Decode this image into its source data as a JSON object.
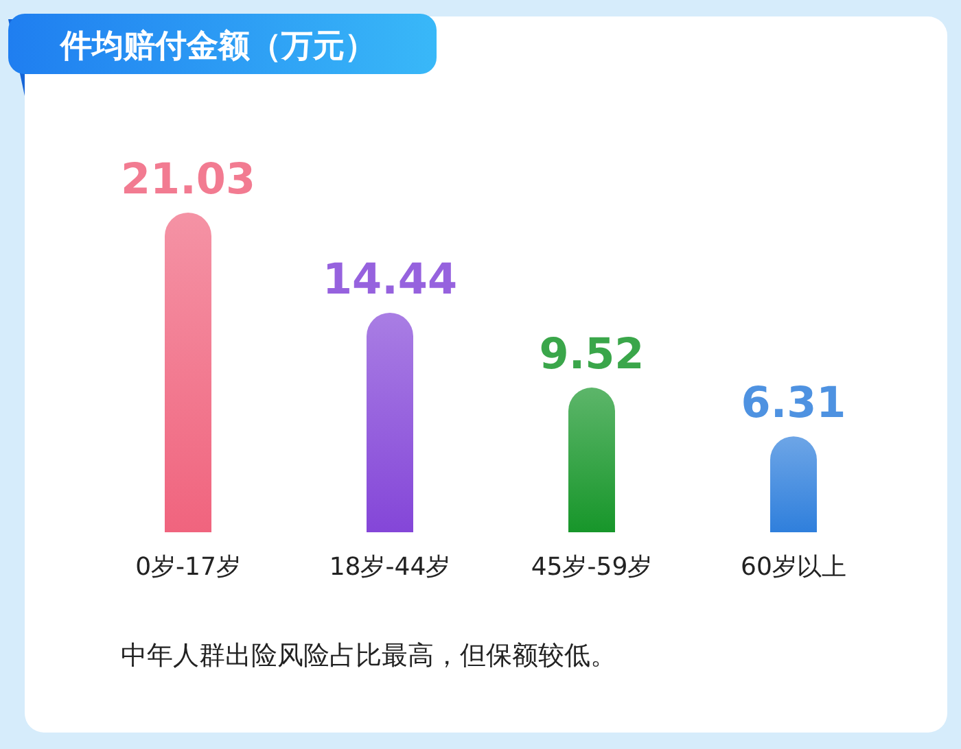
{
  "chart_data": {
    "type": "bar",
    "title": "件均赔付金额（万元）",
    "categories": [
      "0岁-17岁",
      "18岁-44岁",
      "45岁-59岁",
      "60岁以上"
    ],
    "values": [
      21.03,
      14.44,
      9.52,
      6.31
    ],
    "colors": [
      "#f0647e",
      "#8446d8",
      "#17962a",
      "#2f7fdc"
    ],
    "data_labels": true,
    "annotations": [
      "中年人群出险风险占比最高，但保额较低。"
    ]
  }
}
